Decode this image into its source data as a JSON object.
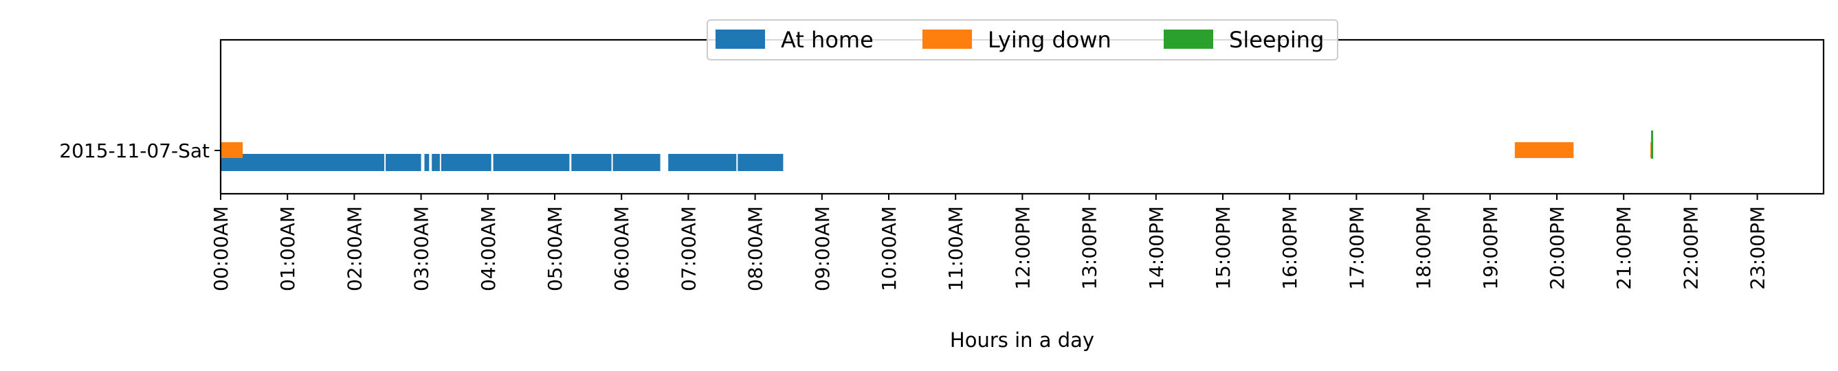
{
  "chart_data": {
    "type": "bar",
    "orientation": "horizontal",
    "xlabel": "Hours in a day",
    "ylabel": "",
    "xlim": [
      0,
      24
    ],
    "x_tick_labels": [
      "00:00AM",
      "01:00AM",
      "02:00AM",
      "03:00AM",
      "04:00AM",
      "05:00AM",
      "06:00AM",
      "07:00AM",
      "08:00AM",
      "09:00AM",
      "10:00AM",
      "11:00AM",
      "12:00PM",
      "13:00PM",
      "14:00PM",
      "15:00PM",
      "16:00PM",
      "17:00PM",
      "18:00PM",
      "19:00PM",
      "20:00PM",
      "21:00PM",
      "22:00PM",
      "23:00PM"
    ],
    "categories": [
      "2015-11-07-Sat"
    ],
    "legend": {
      "placement": "top-center"
    },
    "grid": false,
    "series": [
      {
        "name": "At home",
        "color": "#1f77b4",
        "segments": [
          [
            0.0,
            2.45
          ],
          [
            2.47,
            3.0
          ],
          [
            3.05,
            3.12
          ],
          [
            3.16,
            3.28
          ],
          [
            3.3,
            4.05
          ],
          [
            4.08,
            5.22
          ],
          [
            5.25,
            5.85
          ],
          [
            5.87,
            6.58
          ],
          [
            6.7,
            7.72
          ],
          [
            7.74,
            8.42
          ]
        ]
      },
      {
        "name": "Lying down",
        "color": "#ff7f0e",
        "segments": [
          [
            0.0,
            0.33
          ],
          [
            19.37,
            20.25
          ],
          [
            21.4,
            21.43
          ]
        ]
      },
      {
        "name": "Sleeping",
        "color": "#2ca02c",
        "segments": [
          [
            21.41,
            21.43
          ]
        ]
      }
    ]
  }
}
